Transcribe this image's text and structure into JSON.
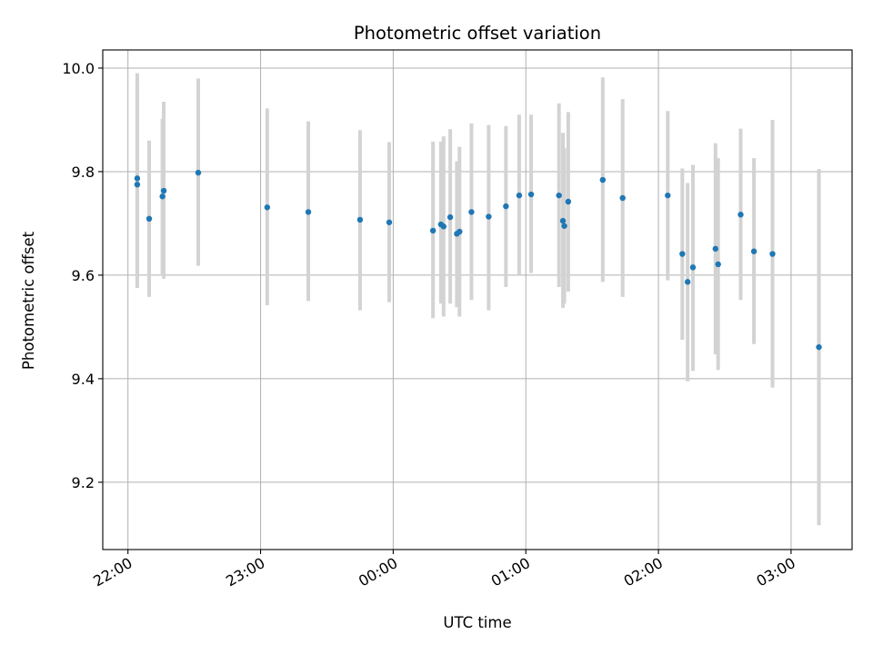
{
  "chart_data": {
    "type": "scatter",
    "title": "Photometric offset variation",
    "xlabel": "UTC time",
    "ylabel": "Photometric offset",
    "x_unit": "hours since 22:00 UTC",
    "xlim": [
      -0.19,
      5.46
    ],
    "ylim": [
      9.07,
      10.035
    ],
    "grid": true,
    "error_bar_color": "#d3d3d3",
    "marker_color": "#1f77b4",
    "x_ticks": [
      {
        "value": 0,
        "label": "22:00"
      },
      {
        "value": 1,
        "label": "23:00"
      },
      {
        "value": 2,
        "label": "00:00"
      },
      {
        "value": 3,
        "label": "01:00"
      },
      {
        "value": 4,
        "label": "02:00"
      },
      {
        "value": 5,
        "label": "03:00"
      }
    ],
    "y_ticks": [
      {
        "value": 9.2,
        "label": "9.2"
      },
      {
        "value": 9.4,
        "label": "9.4"
      },
      {
        "value": 9.6,
        "label": "9.6"
      },
      {
        "value": 9.8,
        "label": "9.8"
      },
      {
        "value": 10.0,
        "label": "10.0"
      }
    ],
    "points": [
      {
        "x": 0.07,
        "y": 9.787,
        "low": 9.583,
        "high": 9.99
      },
      {
        "x": 0.07,
        "y": 9.775,
        "low": 9.575,
        "high": 9.975
      },
      {
        "x": 0.16,
        "y": 9.709,
        "low": 9.558,
        "high": 9.86
      },
      {
        "x": 0.26,
        "y": 9.752,
        "low": 9.6,
        "high": 9.902
      },
      {
        "x": 0.27,
        "y": 9.763,
        "low": 9.593,
        "high": 9.935
      },
      {
        "x": 0.53,
        "y": 9.798,
        "low": 9.618,
        "high": 9.98
      },
      {
        "x": 1.05,
        "y": 9.731,
        "low": 9.542,
        "high": 9.922
      },
      {
        "x": 1.36,
        "y": 9.722,
        "low": 9.55,
        "high": 9.897
      },
      {
        "x": 1.75,
        "y": 9.707,
        "low": 9.532,
        "high": 9.88
      },
      {
        "x": 1.97,
        "y": 9.702,
        "low": 9.548,
        "high": 9.857
      },
      {
        "x": 2.3,
        "y": 9.686,
        "low": 9.517,
        "high": 9.858
      },
      {
        "x": 2.36,
        "y": 9.698,
        "low": 9.545,
        "high": 9.858
      },
      {
        "x": 2.38,
        "y": 9.694,
        "low": 9.52,
        "high": 9.868
      },
      {
        "x": 2.43,
        "y": 9.712,
        "low": 9.545,
        "high": 9.882
      },
      {
        "x": 2.48,
        "y": 9.68,
        "low": 9.538,
        "high": 9.82
      },
      {
        "x": 2.5,
        "y": 9.684,
        "low": 9.52,
        "high": 9.848
      },
      {
        "x": 2.59,
        "y": 9.722,
        "low": 9.552,
        "high": 9.893
      },
      {
        "x": 2.72,
        "y": 9.713,
        "low": 9.532,
        "high": 9.89
      },
      {
        "x": 2.85,
        "y": 9.733,
        "low": 9.577,
        "high": 9.888
      },
      {
        "x": 2.95,
        "y": 9.754,
        "low": 9.6,
        "high": 9.91
      },
      {
        "x": 3.04,
        "y": 9.756,
        "low": 9.604,
        "high": 9.91
      },
      {
        "x": 3.25,
        "y": 9.754,
        "low": 9.577,
        "high": 9.932
      },
      {
        "x": 3.28,
        "y": 9.705,
        "low": 9.537,
        "high": 9.875
      },
      {
        "x": 3.29,
        "y": 9.695,
        "low": 9.545,
        "high": 9.845
      },
      {
        "x": 3.32,
        "y": 9.742,
        "low": 9.568,
        "high": 9.915
      },
      {
        "x": 3.58,
        "y": 9.784,
        "low": 9.587,
        "high": 9.982
      },
      {
        "x": 3.73,
        "y": 9.749,
        "low": 9.558,
        "high": 9.94
      },
      {
        "x": 4.07,
        "y": 9.754,
        "low": 9.59,
        "high": 9.917
      },
      {
        "x": 4.18,
        "y": 9.641,
        "low": 9.475,
        "high": 9.806
      },
      {
        "x": 4.22,
        "y": 9.587,
        "low": 9.395,
        "high": 9.778
      },
      {
        "x": 4.26,
        "y": 9.615,
        "low": 9.415,
        "high": 9.813
      },
      {
        "x": 4.43,
        "y": 9.651,
        "low": 9.447,
        "high": 9.855
      },
      {
        "x": 4.45,
        "y": 9.621,
        "low": 9.417,
        "high": 9.826
      },
      {
        "x": 4.62,
        "y": 9.717,
        "low": 9.552,
        "high": 9.883
      },
      {
        "x": 4.72,
        "y": 9.646,
        "low": 9.467,
        "high": 9.826
      },
      {
        "x": 4.86,
        "y": 9.641,
        "low": 9.383,
        "high": 9.9
      },
      {
        "x": 5.21,
        "y": 9.461,
        "low": 9.117,
        "high": 9.805
      }
    ]
  }
}
